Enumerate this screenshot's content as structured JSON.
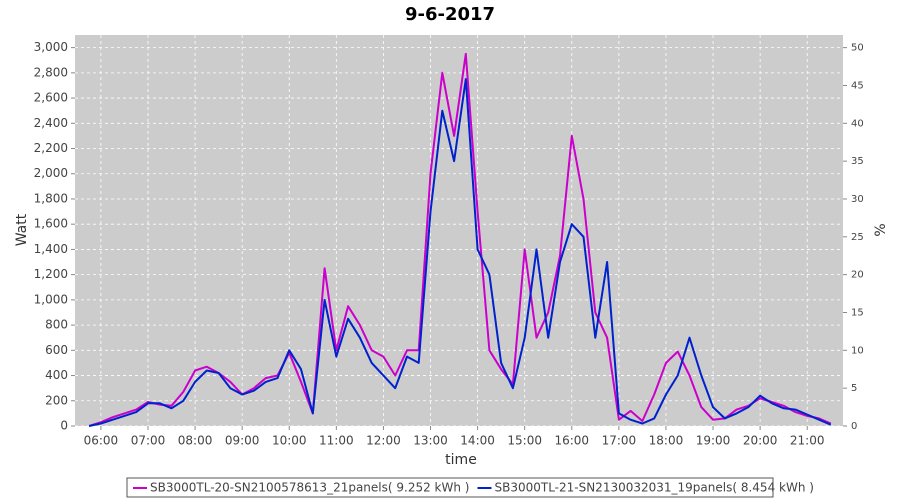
{
  "chart_data": {
    "type": "line",
    "title": "9-6-2017",
    "x_label": "time",
    "y_label": "Watt",
    "y2_label": "%",
    "x": [
      5.75,
      6,
      6.25,
      6.5,
      6.75,
      7,
      7.25,
      7.5,
      7.75,
      8,
      8.25,
      8.5,
      8.75,
      9,
      9.25,
      9.5,
      9.75,
      10,
      10.25,
      10.5,
      10.75,
      11,
      11.25,
      11.5,
      11.75,
      12,
      12.25,
      12.5,
      12.75,
      13,
      13.25,
      13.5,
      13.75,
      14,
      14.25,
      14.5,
      14.75,
      15,
      15.25,
      15.5,
      15.75,
      16,
      16.25,
      16.5,
      16.75,
      17,
      17.25,
      17.5,
      17.75,
      18,
      18.25,
      18.5,
      18.75,
      19,
      19.25,
      19.5,
      19.75,
      20,
      20.25,
      20.5,
      20.75,
      21,
      21.25,
      21.5
    ],
    "series": [
      {
        "name": "SB3000TL-20-SN2100578613_21panels( 9.252 kWh )",
        "color": "#cc00cc",
        "values": [
          0,
          30,
          70,
          100,
          130,
          190,
          170,
          160,
          270,
          440,
          470,
          420,
          350,
          250,
          300,
          380,
          400,
          580,
          350,
          100,
          1250,
          600,
          950,
          800,
          600,
          550,
          400,
          600,
          600,
          2000,
          2800,
          2300,
          2950,
          1700,
          600,
          450,
          330,
          1400,
          700,
          900,
          1350,
          2300,
          1800,
          900,
          700,
          50,
          120,
          40,
          250,
          500,
          590,
          400,
          150,
          50,
          60,
          130,
          160,
          220,
          190,
          160,
          110,
          80,
          60,
          20
        ]
      },
      {
        "name": "SB3000TL-21-SN2130032031_19panels( 8.454 kWh )",
        "color": "#0022cc",
        "values": [
          0,
          20,
          50,
          80,
          110,
          180,
          180,
          140,
          200,
          350,
          440,
          420,
          300,
          250,
          280,
          350,
          380,
          600,
          450,
          100,
          1000,
          550,
          850,
          700,
          500,
          400,
          300,
          550,
          500,
          1700,
          2500,
          2100,
          2750,
          1400,
          1200,
          500,
          300,
          700,
          1400,
          700,
          1300,
          1600,
          1500,
          700,
          1300,
          100,
          50,
          20,
          60,
          250,
          400,
          700,
          400,
          150,
          60,
          100,
          150,
          240,
          180,
          140,
          130,
          90,
          50,
          10
        ]
      }
    ],
    "xlim": [
      5.45,
      21.76
    ],
    "xticks": [
      {
        "value": 6,
        "label": "06:00"
      },
      {
        "value": 7,
        "label": "07:00"
      },
      {
        "value": 8,
        "label": "08:00"
      },
      {
        "value": 9,
        "label": "09:00"
      },
      {
        "value": 10,
        "label": "10:00"
      },
      {
        "value": 11,
        "label": "11:00"
      },
      {
        "value": 12,
        "label": "12:00"
      },
      {
        "value": 13,
        "label": "13:00"
      },
      {
        "value": 14,
        "label": "14:00"
      },
      {
        "value": 15,
        "label": "15:00"
      },
      {
        "value": 16,
        "label": "16:00"
      },
      {
        "value": 17,
        "label": "17:00"
      },
      {
        "value": 18,
        "label": "18:00"
      },
      {
        "value": 19,
        "label": "19:00"
      },
      {
        "value": 20,
        "label": "20:00"
      },
      {
        "value": 21,
        "label": "21:00"
      }
    ],
    "ylim": [
      0,
      3100
    ],
    "yticks": [
      0,
      200,
      400,
      600,
      800,
      {
        "value": 1000,
        "label": "1,000"
      },
      {
        "value": 1200,
        "label": "1,200"
      },
      {
        "value": 1400,
        "label": "1,400"
      },
      {
        "value": 1600,
        "label": "1,600"
      },
      {
        "value": 1800,
        "label": "1,800"
      },
      {
        "value": 2000,
        "label": "2,000"
      },
      {
        "value": 2200,
        "label": "2,200"
      },
      {
        "value": 2400,
        "label": "2,400"
      },
      {
        "value": 2600,
        "label": "2,600"
      },
      {
        "value": 2800,
        "label": "2,800"
      },
      {
        "value": 3000,
        "label": "3,000"
      }
    ],
    "y2lim": [
      0,
      51.67
    ],
    "y2ticks": [
      0,
      5,
      10,
      15,
      20,
      25,
      30,
      35,
      40,
      45,
      50
    ],
    "grid": true,
    "legend": "bottom"
  }
}
